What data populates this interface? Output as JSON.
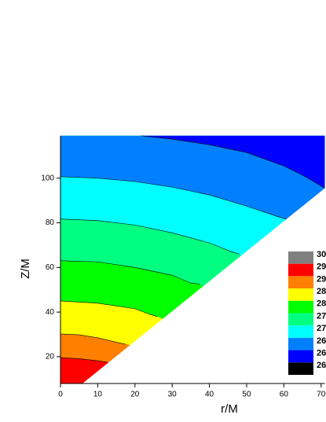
{
  "chart_data": {
    "type": "contour",
    "xlabel": "r/M",
    "ylabel": "Z/M",
    "xlim": [
      0,
      71
    ],
    "ylim": [
      8,
      119
    ],
    "xticks": [
      0,
      10,
      20,
      30,
      40,
      50,
      60,
      70
    ],
    "yticks": [
      20,
      40,
      60,
      80,
      100
    ],
    "base_color": "#ff0000",
    "contours": [
      {
        "color": "#ff8000",
        "x": [
          0,
          5,
          10,
          12.7
        ],
        "y": [
          19.6,
          19.1,
          18.2,
          17.5
        ]
      },
      {
        "color": "#ffff00",
        "x": [
          0,
          5,
          10,
          15,
          17.5
        ],
        "y": [
          30.2,
          29.8,
          28.5,
          26.5,
          25.6
        ]
      },
      {
        "color": "#00ff00",
        "x": [
          0,
          10,
          20,
          24,
          26
        ],
        "y": [
          45,
          44,
          41.5,
          39,
          38
        ]
      },
      {
        "color": "#00ff80",
        "x": [
          0,
          10,
          20,
          30,
          35,
          37.5
        ],
        "y": [
          63,
          62.5,
          60,
          56.5,
          53,
          52.5
        ]
      },
      {
        "color": "#00ffff",
        "x": [
          0,
          10,
          20,
          30,
          40,
          46,
          48
        ],
        "y": [
          81.7,
          81,
          79,
          75.5,
          71,
          67,
          66
        ]
      },
      {
        "color": "#0080ff",
        "x": [
          0,
          10,
          20,
          30,
          40,
          50,
          58,
          62
        ],
        "y": [
          100.7,
          100,
          98.5,
          96,
          92.5,
          87.5,
          83,
          81
        ]
      },
      {
        "color": "#0000ff",
        "x": [
          21.7,
          30,
          40,
          50,
          60,
          66,
          71
        ],
        "y": [
          119,
          117.5,
          115,
          111.5,
          105.5,
          100.5,
          95.5
        ]
      }
    ],
    "domain_edge": {
      "x": [
        5.9,
        71
      ],
      "y": [
        8,
        95.5
      ]
    },
    "legend": [
      {
        "label": "30",
        "color": "#808080"
      },
      {
        "label": "29",
        "color": "#ff0000"
      },
      {
        "label": "29",
        "color": "#ff8000"
      },
      {
        "label": "28",
        "color": "#ffff00"
      },
      {
        "label": "28",
        "color": "#00ff00"
      },
      {
        "label": "27",
        "color": "#00ff80"
      },
      {
        "label": "27",
        "color": "#00ffff"
      },
      {
        "label": "26",
        "color": "#0080ff"
      },
      {
        "label": "26",
        "color": "#0000ff"
      },
      {
        "label": "26",
        "color": "#000000"
      }
    ]
  }
}
